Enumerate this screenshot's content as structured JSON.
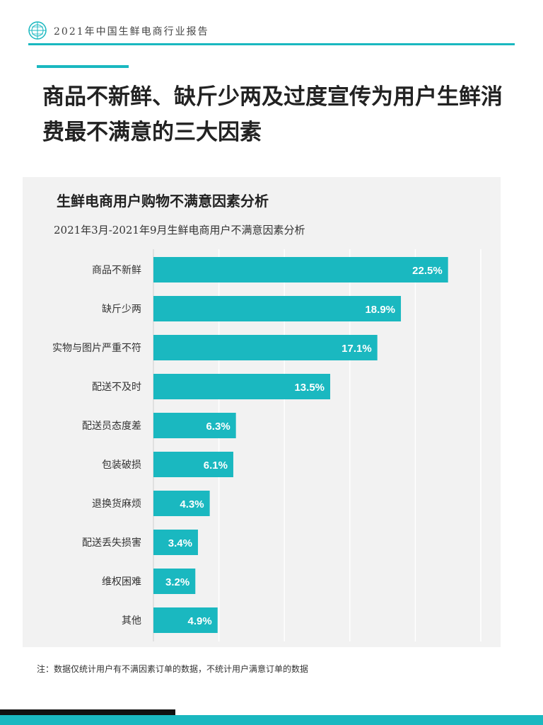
{
  "header": {
    "title": "2021年中国生鲜电商行业报告"
  },
  "headline": {
    "text": "商品不新鲜、缺斤少两及过度宣传为用户生鲜消费最不满意的三大因素"
  },
  "chart_data": {
    "type": "bar",
    "orientation": "horizontal",
    "title": "生鲜电商用户购物不满意因素分析",
    "subtitle": "2021年3月-2021年9月生鲜电商用户不满意因素分析",
    "categories": [
      "商品不新鲜",
      "缺斤少两",
      "实物与图片严重不符",
      "配送不及时",
      "配送员态度差",
      "包装破损",
      "退换货麻烦",
      "配送丢失损害",
      "维权困难",
      "其他"
    ],
    "values": [
      22.5,
      18.9,
      17.1,
      13.5,
      6.3,
      6.1,
      4.3,
      3.4,
      3.2,
      4.9
    ],
    "value_labels": [
      "22.5%",
      "18.9%",
      "17.1%",
      "13.5%",
      "6.3%",
      "6.1%",
      "4.3%",
      "3.4%",
      "3.2%",
      "4.9%"
    ],
    "xlim": [
      0,
      25
    ],
    "grid": true,
    "bar_color": "#1ab8c0",
    "label_color": "#ffffff"
  },
  "footnote": "注：数据仅统计用户有不满因素订单的数据，不统计用户满意订单的数据",
  "colors": {
    "accent": "#1ab8c0",
    "panel": "#f2f2f2"
  }
}
